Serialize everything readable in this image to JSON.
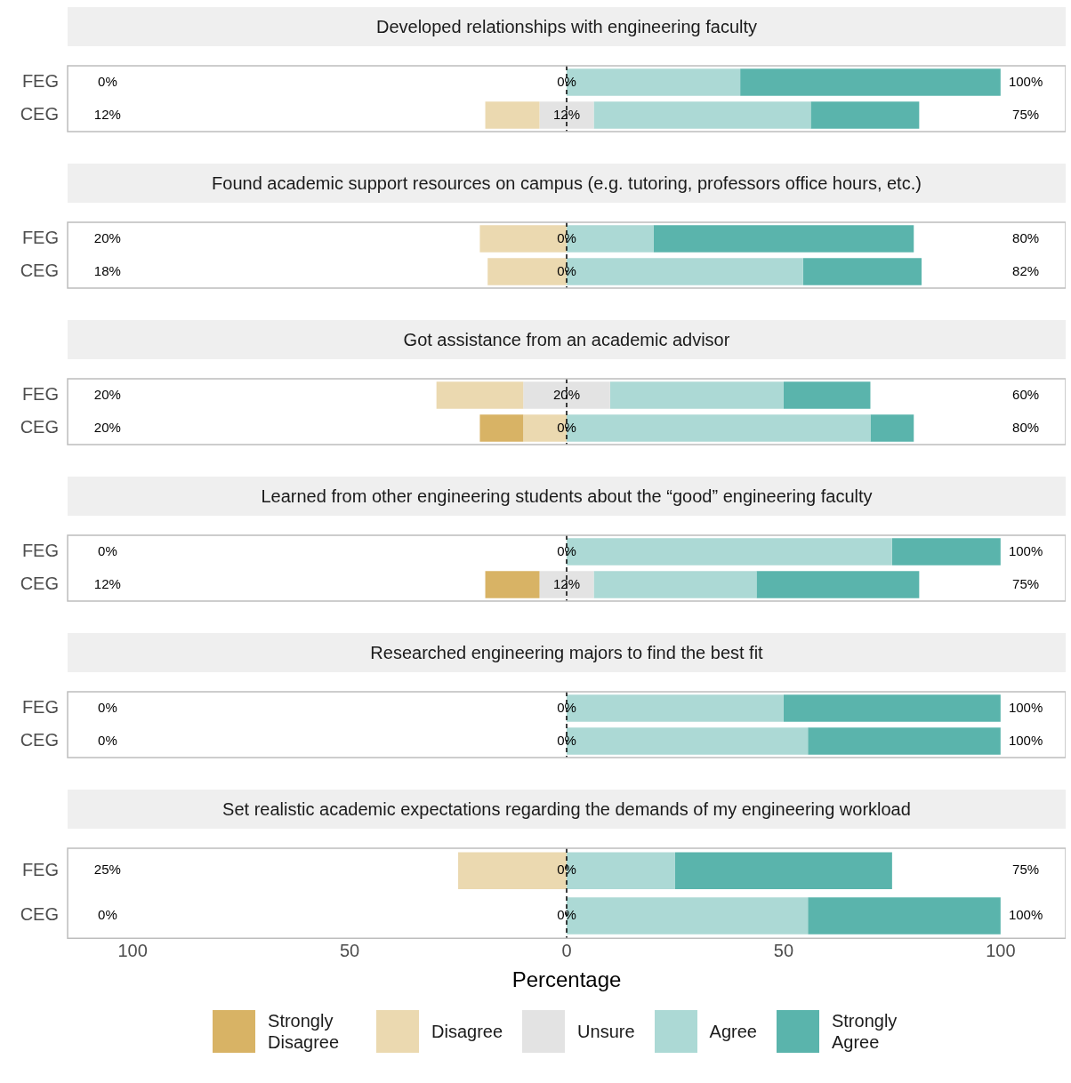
{
  "chart_data": [
    {
      "type": "bar",
      "orientation": "horizontal",
      "title": "Developed relationships with engineering faculty",
      "categories": [
        "FEG",
        "CEG"
      ],
      "xlim": [
        -115,
        115
      ],
      "grid": false,
      "tick_labels": "y",
      "series": [
        {
          "color": "#d8b365",
          "values": [
            null,
            null
          ],
          "base": [
            null,
            null
          ]
        },
        {
          "color": "#ebd9b0",
          "values": [
            null,
            -12.5
          ],
          "base": [
            null,
            -6.25
          ]
        },
        {
          "color": "#e3e3e3",
          "values": [
            null,
            12.5
          ],
          "base": [
            null,
            -6.25
          ]
        },
        {
          "color": "#acd9d5",
          "values": [
            40,
            50
          ],
          "base": [
            0,
            6.25
          ]
        },
        {
          "color": "#5ab4ac",
          "values": [
            60,
            25
          ],
          "base": [
            40,
            56.25
          ]
        }
      ],
      "ref_lines": [
        {
          "axis": "x",
          "value": 0,
          "line_style": "dashed",
          "color": "#000000"
        }
      ],
      "annotations": [
        "0%",
        "0%",
        "100%",
        "12%",
        "12%",
        "75%"
      ]
    },
    {
      "type": "bar",
      "orientation": "horizontal",
      "title": "Found academic support resources on campus (e.g. tutoring, professors office hours, etc.)",
      "categories": [
        "FEG",
        "CEG"
      ],
      "xlim": [
        -115,
        115
      ],
      "grid": false,
      "tick_labels": "y",
      "series": [
        {
          "color": "#d8b365",
          "values": [
            null,
            null
          ],
          "base": [
            null,
            null
          ]
        },
        {
          "color": "#ebd9b0",
          "values": [
            -20,
            -18.2
          ],
          "base": [
            0,
            0
          ]
        },
        {
          "color": "#e3e3e3",
          "values": [
            null,
            null
          ],
          "base": [
            null,
            null
          ]
        },
        {
          "color": "#acd9d5",
          "values": [
            20,
            54.5
          ],
          "base": [
            0,
            0
          ]
        },
        {
          "color": "#5ab4ac",
          "values": [
            60,
            27.3
          ],
          "base": [
            20,
            54.5
          ]
        }
      ],
      "ref_lines": [
        {
          "axis": "x",
          "value": 0,
          "line_style": "dashed",
          "color": "#000000"
        }
      ],
      "annotations": [
        "20%",
        "0%",
        "80%",
        "18%",
        "0%",
        "82%"
      ]
    },
    {
      "type": "bar",
      "orientation": "horizontal",
      "title": "Got assistance from an academic advisor",
      "categories": [
        "FEG",
        "CEG"
      ],
      "xlim": [
        -115,
        115
      ],
      "grid": false,
      "tick_labels": "y",
      "series": [
        {
          "color": "#d8b365",
          "values": [
            null,
            -10
          ],
          "base": [
            null,
            -10
          ]
        },
        {
          "color": "#ebd9b0",
          "values": [
            -20,
            -10
          ],
          "base": [
            -10,
            0
          ]
        },
        {
          "color": "#e3e3e3",
          "values": [
            20,
            null
          ],
          "base": [
            -10,
            null
          ]
        },
        {
          "color": "#acd9d5",
          "values": [
            40,
            70
          ],
          "base": [
            10,
            0
          ]
        },
        {
          "color": "#5ab4ac",
          "values": [
            20,
            10
          ],
          "base": [
            50,
            70
          ]
        }
      ],
      "ref_lines": [
        {
          "axis": "x",
          "value": 0,
          "line_style": "dashed",
          "color": "#000000"
        }
      ],
      "annotations": [
        "20%",
        "20%",
        "60%",
        "20%",
        "0%",
        "80%"
      ]
    },
    {
      "type": "bar",
      "orientation": "horizontal",
      "title": "Learned from other engineering students about the “good” engineering faculty",
      "categories": [
        "FEG",
        "CEG"
      ],
      "xlim": [
        -115,
        115
      ],
      "grid": false,
      "tick_labels": "y",
      "series": [
        {
          "color": "#d8b365",
          "values": [
            null,
            -12.5
          ],
          "base": [
            null,
            -6.25
          ]
        },
        {
          "color": "#ebd9b0",
          "values": [
            null,
            null
          ],
          "base": [
            null,
            null
          ]
        },
        {
          "color": "#e3e3e3",
          "values": [
            null,
            12.5
          ],
          "base": [
            null,
            -6.25
          ]
        },
        {
          "color": "#acd9d5",
          "values": [
            75,
            37.5
          ],
          "base": [
            0,
            6.25
          ]
        },
        {
          "color": "#5ab4ac",
          "values": [
            25,
            37.5
          ],
          "base": [
            75,
            43.75
          ]
        }
      ],
      "ref_lines": [
        {
          "axis": "x",
          "value": 0,
          "line_style": "dashed",
          "color": "#000000"
        }
      ],
      "annotations": [
        "0%",
        "0%",
        "100%",
        "12%",
        "12%",
        "75%"
      ]
    },
    {
      "type": "bar",
      "orientation": "horizontal",
      "title": "Researched engineering majors to find the best fit",
      "categories": [
        "FEG",
        "CEG"
      ],
      "xlim": [
        -115,
        115
      ],
      "grid": false,
      "tick_labels": "y",
      "series": [
        {
          "color": "#d8b365",
          "values": [
            null,
            null
          ],
          "base": [
            null,
            null
          ]
        },
        {
          "color": "#ebd9b0",
          "values": [
            null,
            null
          ],
          "base": [
            null,
            null
          ]
        },
        {
          "color": "#e3e3e3",
          "values": [
            null,
            null
          ],
          "base": [
            null,
            null
          ]
        },
        {
          "color": "#acd9d5",
          "values": [
            50,
            55.6
          ],
          "base": [
            0,
            0
          ]
        },
        {
          "color": "#5ab4ac",
          "values": [
            50,
            44.4
          ],
          "base": [
            50,
            55.6
          ]
        }
      ],
      "ref_lines": [
        {
          "axis": "x",
          "value": 0,
          "line_style": "dashed",
          "color": "#000000"
        }
      ],
      "annotations": [
        "0%",
        "0%",
        "100%",
        "0%",
        "0%",
        "100%"
      ]
    },
    {
      "type": "bar",
      "orientation": "horizontal",
      "title": "Set realistic academic expectations regarding the demands of my engineering workload",
      "categories": [
        "FEG",
        "CEG"
      ],
      "xlim": [
        -115,
        115
      ],
      "xticks": [
        {
          "value": -100,
          "label": "100"
        },
        {
          "value": -50,
          "label": "50"
        },
        0,
        50,
        100
      ],
      "xlabel": "Percentage",
      "grid": false,
      "legend": "bottom",
      "series": [
        {
          "name": "Strongly Disagree",
          "color": "#d8b365",
          "values": [
            null,
            null
          ],
          "base": [
            null,
            null
          ]
        },
        {
          "name": "Disagree",
          "color": "#ebd9b0",
          "values": [
            -25,
            null
          ],
          "base": [
            0,
            null
          ]
        },
        {
          "name": "Unsure",
          "color": "#e3e3e3",
          "values": [
            null,
            null
          ],
          "base": [
            null,
            null
          ]
        },
        {
          "name": "Agree",
          "color": "#acd9d5",
          "values": [
            25,
            55.6
          ],
          "base": [
            0,
            0
          ]
        },
        {
          "name": "Strongly Agree",
          "color": "#5ab4ac",
          "values": [
            50,
            44.4
          ],
          "base": [
            25,
            55.6
          ]
        }
      ],
      "ref_lines": [
        {
          "axis": "x",
          "value": 0,
          "line_style": "dashed",
          "color": "#000000"
        }
      ],
      "annotations": [
        "25%",
        "0%",
        "75%",
        "0%",
        "0%",
        "100%"
      ]
    }
  ]
}
